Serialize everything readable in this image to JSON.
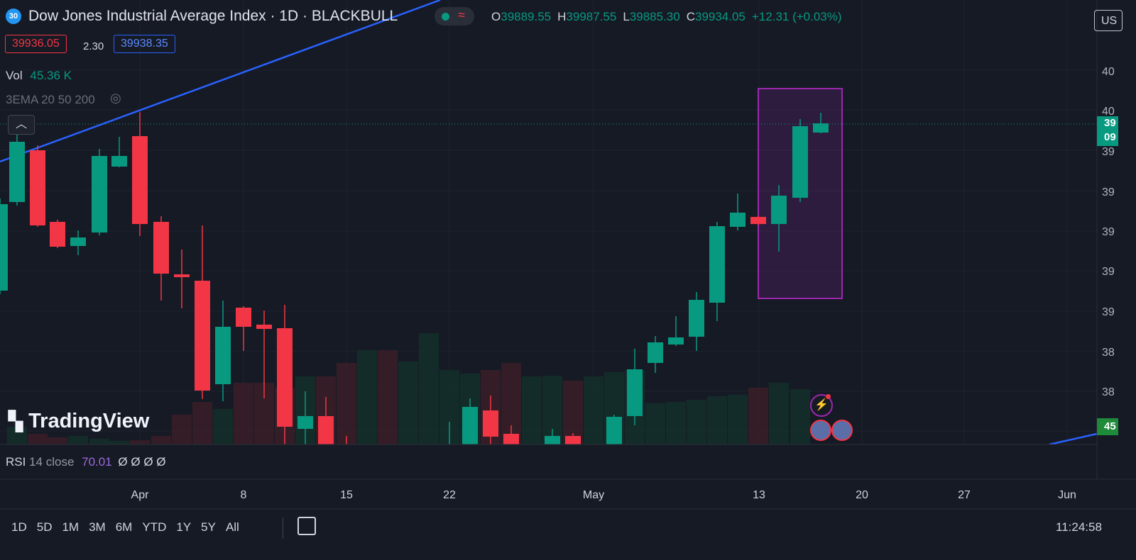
{
  "header": {
    "badge": "30",
    "title": "Dow Jones Industrial Average Index · 1D · BLACKBULL",
    "ohlc": [
      {
        "label": "O",
        "value": "39889.55"
      },
      {
        "label": "H",
        "value": "39987.55"
      },
      {
        "label": "L",
        "value": "39885.30"
      },
      {
        "label": "C",
        "value": "39934.05"
      }
    ],
    "change": "+12.31 (+0.03%)",
    "currency": "US"
  },
  "quote": {
    "bid": "39936.05",
    "spread": "2.30",
    "ask": "39938.35"
  },
  "volume": {
    "label": "Vol",
    "value": "45.36 K"
  },
  "indicator": "3EMA 20 50 200",
  "logo": "TradingView",
  "price_axis": {
    "labels": [
      "40",
      "40",
      "39",
      "39",
      "39",
      "39",
      "39",
      "38",
      "38"
    ],
    "current": [
      "39",
      "09"
    ],
    "volume_tag": "45"
  },
  "rsi": {
    "name": "RSI",
    "params": "14 close",
    "value": "70.01",
    "extra": "Ø Ø Ø Ø"
  },
  "time_axis": [
    "Apr",
    "8",
    "15",
    "22",
    "May",
    "13",
    "20",
    "27",
    "Jun"
  ],
  "toolbar": {
    "ranges": [
      "1D",
      "5D",
      "1M",
      "3M",
      "6M",
      "YTD",
      "1Y",
      "5Y",
      "All"
    ],
    "clock": "11:24:58"
  }
}
